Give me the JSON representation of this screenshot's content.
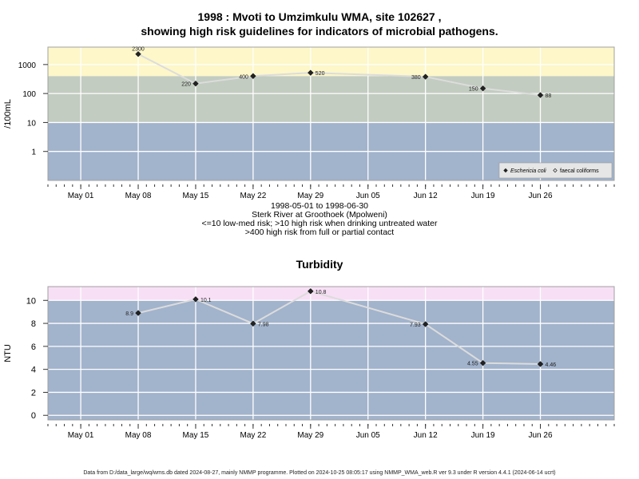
{
  "title": {
    "line1": "1998 : Mvoti to Umzimkulu WMA, site 102627 ,",
    "line2": "showing high risk guidelines for indicators of microbial pathogens."
  },
  "caption": {
    "line1": "1998-05-01 to 1998-06-30",
    "line2": "Sterk River at Groothoek (Mpolweni)",
    "line3": "<=10 low-med risk; >10 high risk when drinking untreated water",
    "line4": ">400 high risk from full or partial contact"
  },
  "turbidity_title": "Turbidity",
  "footer": "Data from D:/data_large/wq/wms.db dated 2024-08-27, mainly NMMP programme. Plotted on 2024-10-25 08:05:17 using NMMP_WMA_web.R ver 9.3 under R version 4.4.1 (2024-06-14 ucrt)",
  "colors": {
    "panel_blue": "#a2b3cc",
    "zone_green": "#c2ccc0",
    "zone_yellow": "#fdf7c9",
    "zone_pink": "#f7dff5",
    "line_gray": "#dcdcdc",
    "point": "#222222",
    "grid": "#ffffff"
  },
  "chart_data": [
    {
      "type": "line",
      "ylabel": "/100mL",
      "yscale": "log",
      "ylim": [
        0.1,
        4000
      ],
      "yticks": [
        1,
        10,
        100,
        1000
      ],
      "ytick_labels": [
        "1",
        "10",
        "100",
        "1000"
      ],
      "xlim": [
        "1998-04-27",
        "1998-07-05"
      ],
      "xticks": [
        "1998-05-01",
        "1998-05-08",
        "1998-05-15",
        "1998-05-22",
        "1998-05-29",
        "1998-06-05",
        "1998-06-12",
        "1998-06-19",
        "1998-06-26"
      ],
      "xtick_labels": [
        "May 01",
        "May 08",
        "May 15",
        "May 22",
        "May 29",
        "Jun 05",
        "Jun 12",
        "Jun 19",
        "Jun 26"
      ],
      "zones": [
        {
          "from": 0.1,
          "to": 10,
          "color": "#a2b3cc"
        },
        {
          "from": 10,
          "to": 400,
          "color": "#c2ccc0"
        },
        {
          "from": 400,
          "to": 4000,
          "color": "#fdf7c9"
        }
      ],
      "series": [
        {
          "name": "Eschericia coli",
          "marker": "filled-diamond",
          "x": [
            "1998-05-08",
            "1998-05-15",
            "1998-05-22",
            "1998-05-29",
            "1998-06-12",
            "1998-06-19",
            "1998-06-26"
          ],
          "y": [
            2300,
            220,
            400,
            520,
            380,
            150,
            88
          ],
          "labels": [
            "2300",
            "220",
            "400",
            "520",
            "380",
            "150",
            "88"
          ],
          "label_side": [
            "top",
            "left",
            "left",
            "right",
            "left",
            "left",
            "right"
          ]
        },
        {
          "name": "faecal coliforms",
          "marker": "open-diamond",
          "x": [],
          "y": []
        }
      ],
      "legend": "bottom-right",
      "grid": true
    },
    {
      "type": "line",
      "title": "Turbidity",
      "ylabel": "NTU",
      "yscale": "linear",
      "ylim": [
        -0.4,
        11.2
      ],
      "yticks": [
        0,
        2,
        4,
        6,
        8,
        10
      ],
      "ytick_labels": [
        "0",
        "2",
        "4",
        "6",
        "8",
        "10"
      ],
      "xlim": [
        "1998-04-27",
        "1998-07-05"
      ],
      "xticks": [
        "1998-05-01",
        "1998-05-08",
        "1998-05-15",
        "1998-05-22",
        "1998-05-29",
        "1998-06-05",
        "1998-06-12",
        "1998-06-19",
        "1998-06-26"
      ],
      "xtick_labels": [
        "May 01",
        "May 08",
        "May 15",
        "May 22",
        "May 29",
        "Jun 05",
        "Jun 12",
        "Jun 19",
        "Jun 26"
      ],
      "zones": [
        {
          "from": -0.4,
          "to": 10,
          "color": "#a2b3cc"
        },
        {
          "from": 10,
          "to": 11.2,
          "color": "#f7dff5"
        }
      ],
      "series": [
        {
          "name": "",
          "marker": "filled-diamond",
          "x": [
            "1998-05-08",
            "1998-05-15",
            "1998-05-22",
            "1998-05-29",
            "1998-06-12",
            "1998-06-19",
            "1998-06-26"
          ],
          "y": [
            8.9,
            10.1,
            7.98,
            10.8,
            7.93,
            4.55,
            4.46
          ],
          "labels": [
            "8.9",
            "10.1",
            "7.98",
            "10.8",
            "7.93",
            "4.55",
            "4.46"
          ],
          "label_side": [
            "left",
            "right",
            "right",
            "right",
            "left",
            "left",
            "right"
          ]
        }
      ],
      "grid": true
    }
  ]
}
